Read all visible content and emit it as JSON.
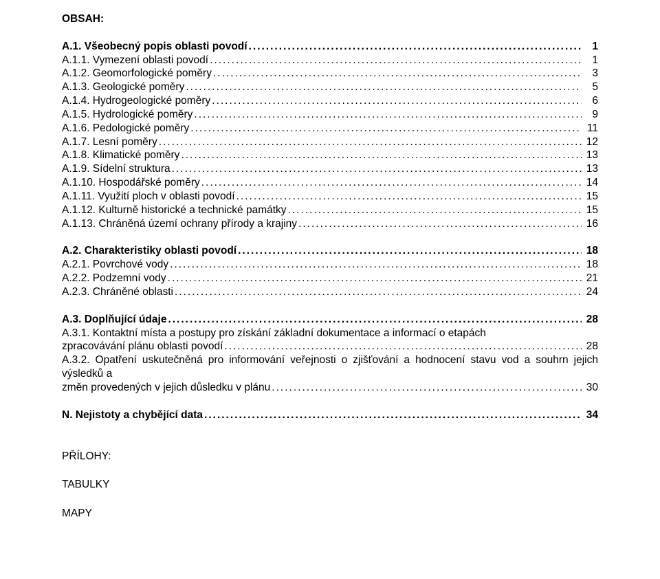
{
  "heading": "OBSAH:",
  "dots": "........................................................................................................................................................................................................................................................................",
  "sections": [
    {
      "title": {
        "label": "A.1. Všeobecný popis oblasti povodí",
        "page": "1"
      },
      "items": [
        {
          "label": "A.1.1. Vymezení oblasti povodí",
          "page": "1"
        },
        {
          "label": "A.1.2. Geomorfologické poměry",
          "page": "3"
        },
        {
          "label": "A.1.3. Geologické poměry",
          "page": "5"
        },
        {
          "label": "A.1.4. Hydrogeologické poměry",
          "page": "6"
        },
        {
          "label": "A.1.5. Hydrologické poměry",
          "page": "9"
        },
        {
          "label": "A.1.6. Pedologické poměry",
          "page": "11"
        },
        {
          "label": "A.1.7. Lesní poměry",
          "page": "12"
        },
        {
          "label": "A.1.8. Klimatické poměry",
          "page": "13"
        },
        {
          "label": "A.1.9. Sídelní struktura",
          "page": "13"
        },
        {
          "label": "A.1.10. Hospodářské poměry",
          "page": "14"
        },
        {
          "label": "A.1.11. Využití ploch v oblasti povodí",
          "page": "15"
        },
        {
          "label": "A.1.12. Kulturně historické a technické památky",
          "page": "15"
        },
        {
          "label": "A.1.13. Chráněná území ochrany přírody a krajiny",
          "page": "16"
        }
      ]
    },
    {
      "title": {
        "label": "A.2. Charakteristiky oblasti povodí",
        "page": "18"
      },
      "items": [
        {
          "label": "A.2.1. Povrchové vody",
          "page": "18"
        },
        {
          "label": "A.2.2. Podzemní vody",
          "page": "21"
        },
        {
          "label": "A.2.3. Chráněné oblasti",
          "page": "24"
        }
      ]
    },
    {
      "title": {
        "label": "A.3. Doplňující údaje",
        "page": "28"
      },
      "wrapped": [
        {
          "text": "A.3.1. Kontaktní místa a postupy pro získání základní dokumentace a informací o etapách zpracovávání plánu oblasti povodí",
          "page": "28"
        },
        {
          "text": "A.3.2. Opatření uskutečněná pro informování veřejnosti o zjišťování a hodnocení stavu vod a souhrn jejich výsledků a změn provedených v jejich důsledku v plánu",
          "page": "30"
        }
      ]
    },
    {
      "title": {
        "label": "N. Nejistoty a chybějící data",
        "page": "34"
      }
    }
  ],
  "footer": {
    "a": "PŘÍLOHY:",
    "b": "TABULKY",
    "c": "MAPY"
  }
}
